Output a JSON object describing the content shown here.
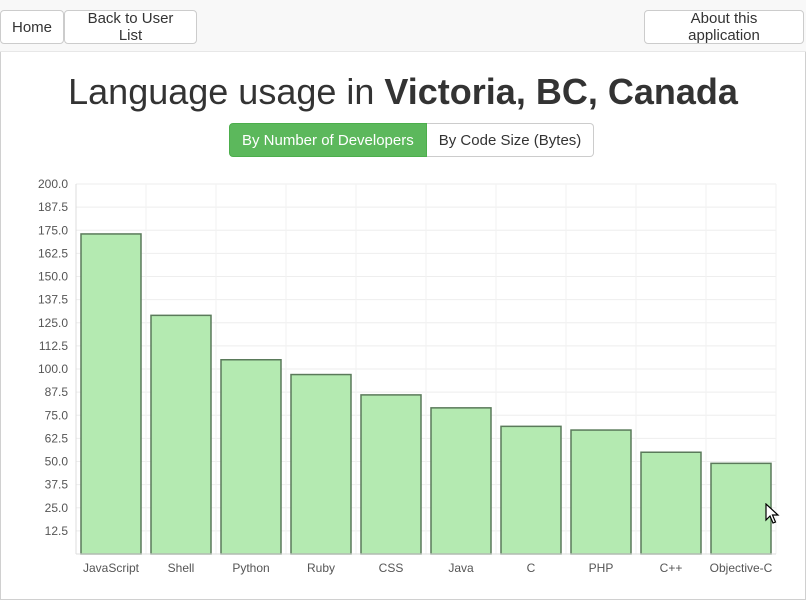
{
  "nav": {
    "home_label": "Home",
    "back_label": "Back to User List",
    "about_label": "About this application"
  },
  "header": {
    "title_prefix": "Language usage in ",
    "title_location": "Victoria, BC, Canada"
  },
  "toggle": {
    "developers_label": "By Number of Developers",
    "codesize_label": "By Code Size (Bytes)",
    "active": "developers"
  },
  "colors": {
    "bar_fill": "#b4eab1",
    "bar_stroke": "#5a7a5a",
    "accent": "#5cb85c"
  },
  "chart_data": {
    "type": "bar",
    "categories": [
      "JavaScript",
      "Shell",
      "Python",
      "Ruby",
      "CSS",
      "Java",
      "C",
      "PHP",
      "C++",
      "Objective-C"
    ],
    "values": [
      173,
      129,
      105,
      97,
      86,
      79,
      69,
      67,
      55,
      49
    ],
    "yticks": [
      "200.0",
      "187.5",
      "175.0",
      "162.5",
      "150.0",
      "137.5",
      "125.0",
      "112.5",
      "100.0",
      "87.5",
      "75.0",
      "62.5",
      "50.0",
      "37.5",
      "25.0",
      "12.5"
    ],
    "ylim": [
      0,
      200
    ],
    "grid": true,
    "title": "",
    "xlabel": "",
    "ylabel": ""
  }
}
